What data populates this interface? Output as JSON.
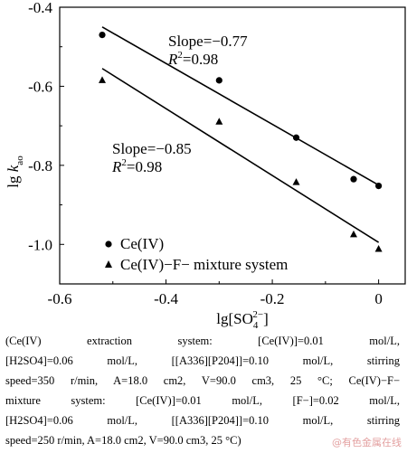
{
  "chart_data": {
    "type": "scatter",
    "xlabel": "lg[SO42−]",
    "ylabel": "lg kao",
    "xlim": [
      -0.6,
      0.05
    ],
    "ylim": [
      -1.1,
      -0.4
    ],
    "xticks": [
      "-0.6",
      "-0.4",
      "-0.2",
      "0"
    ],
    "yticks": [
      "-0.4",
      "-0.6",
      "-0.8",
      "-1.0"
    ],
    "xtick_values": [
      -0.6,
      -0.4,
      -0.2,
      0
    ],
    "ytick_values": [
      -0.4,
      -0.6,
      -0.8,
      -1.0
    ],
    "legend_position": "bottom-left",
    "series": [
      {
        "name": "Ce(IV)",
        "marker": "circle",
        "x": [
          -0.52,
          -0.3,
          -0.155,
          -0.047,
          0.0
        ],
        "y": [
          -0.47,
          -0.585,
          -0.73,
          -0.835,
          -0.852
        ],
        "fit": {
          "x": [
            -0.52,
            0.0
          ],
          "y": [
            -0.45,
            -0.85
          ]
        },
        "slope_label": "Slope=−0.77",
        "r2_label_prefix": "R",
        "r2_label_sup": "2",
        "r2_label_value": "=0.98"
      },
      {
        "name": "Ce(IV)−F− mixture system",
        "marker": "triangle",
        "x": [
          -0.52,
          -0.3,
          -0.155,
          -0.047,
          0.0
        ],
        "y": [
          -0.585,
          -0.69,
          -0.843,
          -0.975,
          -1.012
        ],
        "fit": {
          "x": [
            -0.52,
            0.0
          ],
          "y": [
            -0.555,
            -0.995
          ]
        },
        "slope_label": "Slope=−0.85",
        "r2_label_prefix": "R",
        "r2_label_sup": "2",
        "r2_label_value": "=0.98"
      }
    ]
  },
  "caption": {
    "lines": [
      "(Ce(IV) extraction system: [Ce(IV)]=0.01 mol/L,",
      "[H2SO4]=0.06 mol/L, [[A336][P204]]=0.10 mol/L, stirring",
      "speed=350 r/min, A=18.0 cm2, V=90.0 cm3, 25 °C; Ce(IV)−F−",
      "mixture system: [Ce(IV)]=0.01 mol/L, [F−]=0.02 mol/L,",
      "[H2SO4]=0.06 mol/L, [[A336][P204]]=0.10 mol/L, stirring",
      "speed=250 r/min, A=18.0 cm2, V=90.0 cm3, 25 °C)"
    ]
  },
  "watermark": "@有色金属在线"
}
